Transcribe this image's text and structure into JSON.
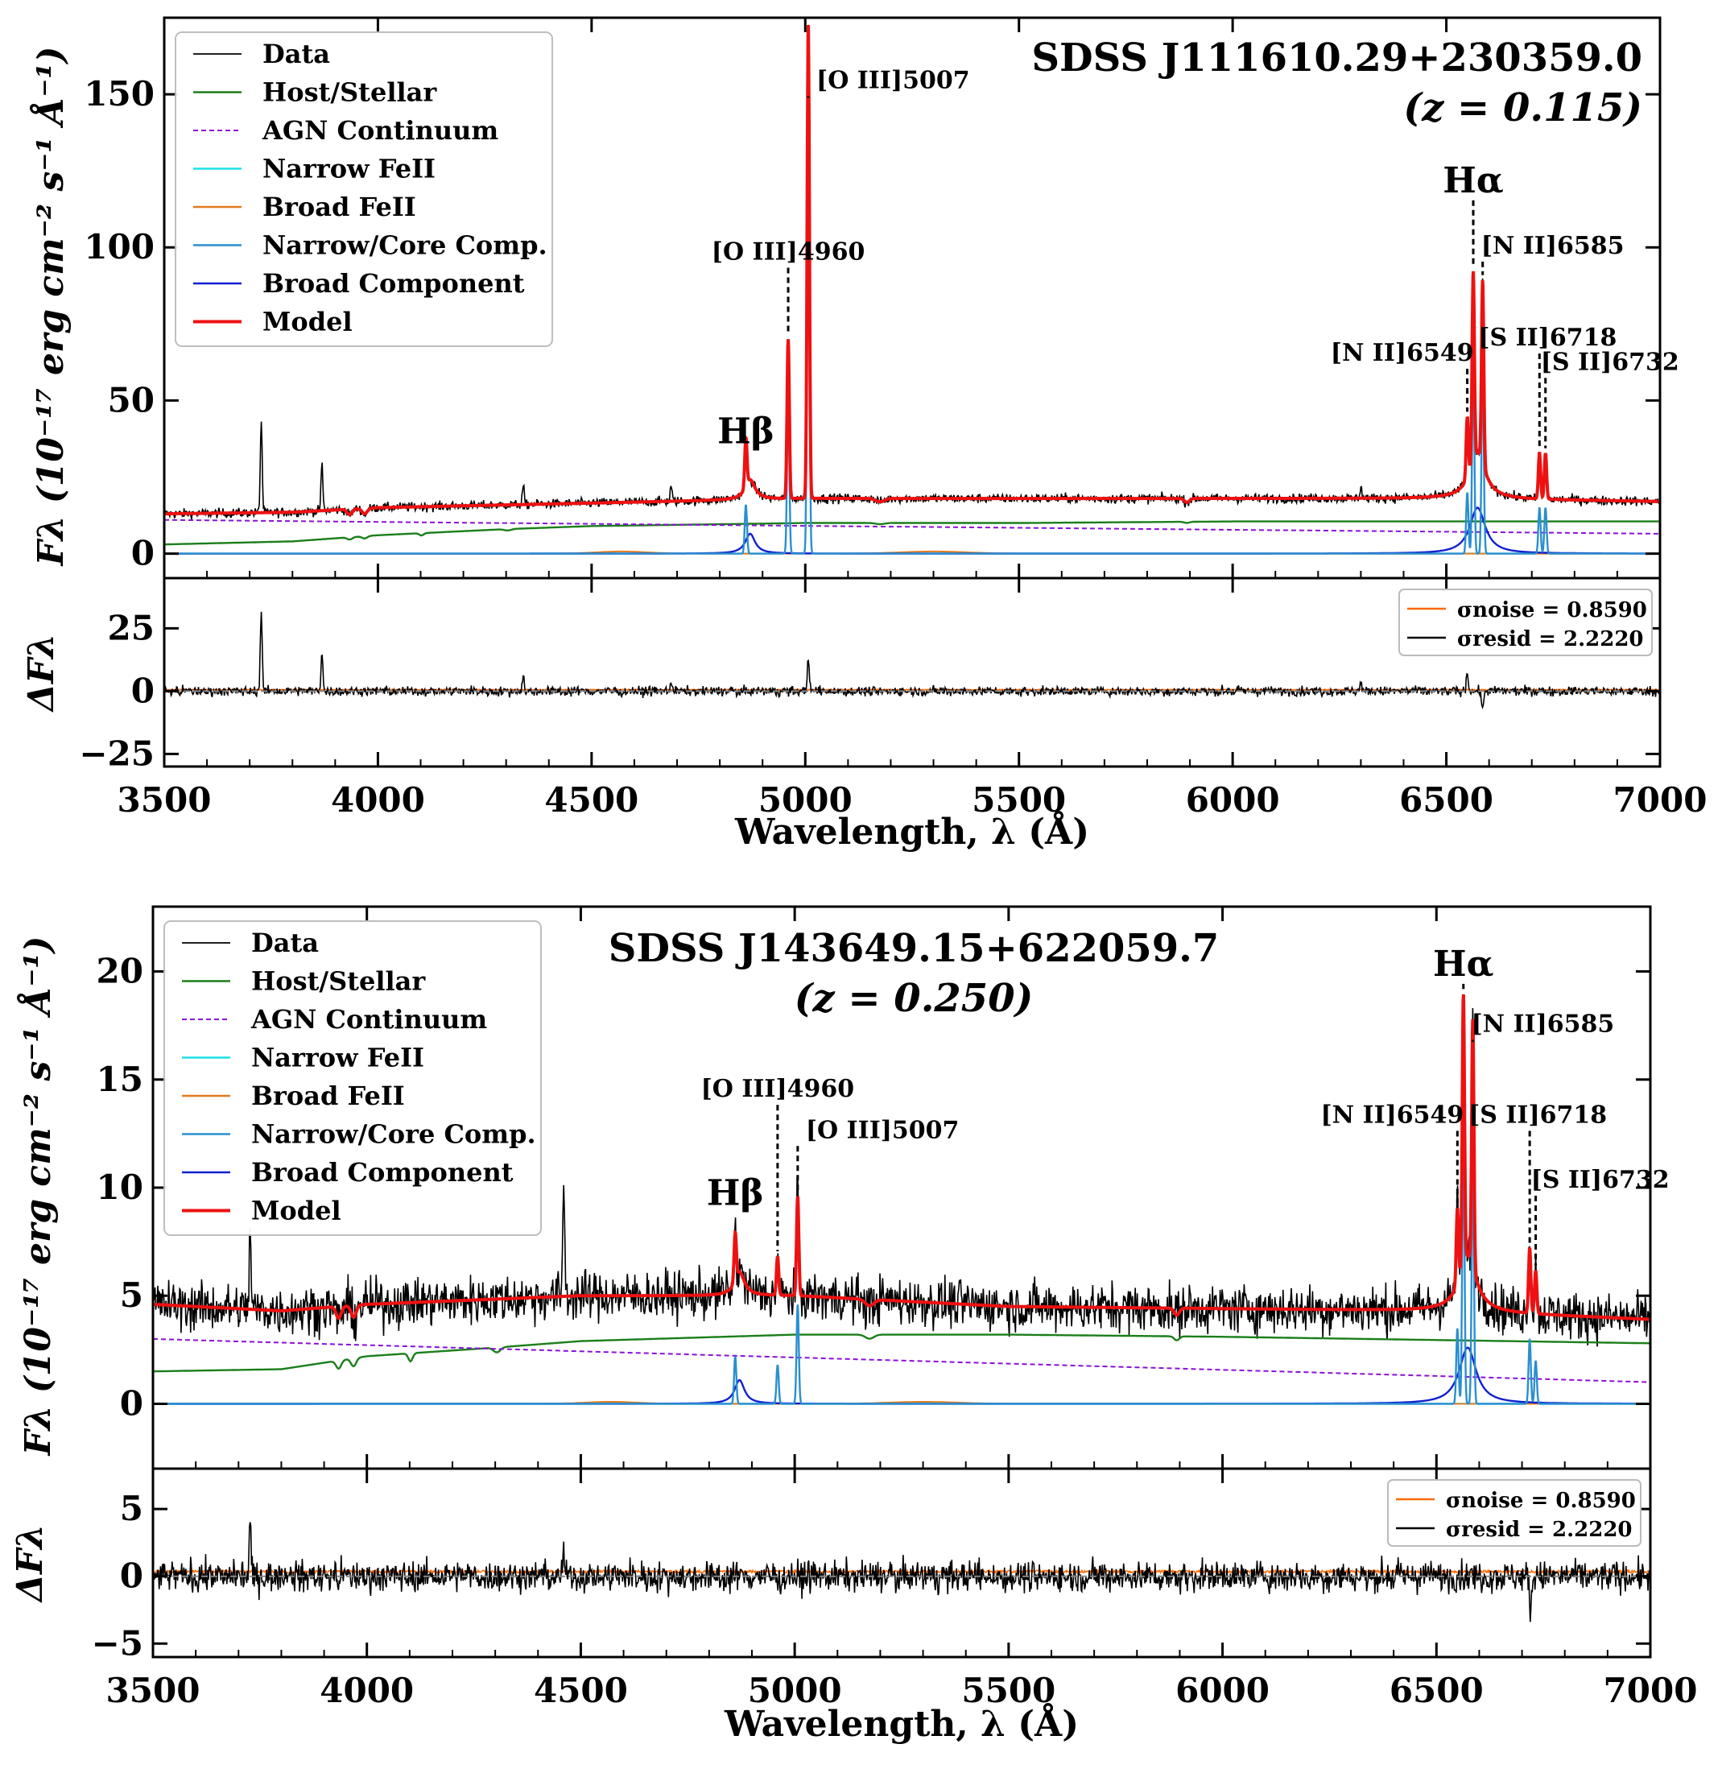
{
  "colors": {
    "data": "#000000",
    "host": "#1a7f1a",
    "agn": "#8b10d8",
    "narrow_feii": "#1fe0e8",
    "broad_feii": "#e07c1e",
    "narrow_core": "#2a8fd0",
    "broad_comp": "#1020d0",
    "model": "#ee1111",
    "sigma_noise": "#ff6a00",
    "sigma_resid": "#000000"
  },
  "chart_data": [
    {
      "type": "line",
      "title": "SDSS J111610.29+230359.0",
      "subtitle": "(z = 0.115)",
      "ylabel": "Fλ (10⁻¹⁷ erg cm⁻² s⁻¹ Å⁻¹)",
      "resid_ylabel": "ΔFλ",
      "xlabel": "Wavelength, λ (Å)",
      "xlim": [
        3500,
        7000
      ],
      "ylim": [
        -8,
        175
      ],
      "resid_ylim": [
        -30,
        45
      ],
      "xticks": [
        3500,
        4000,
        4500,
        5000,
        5500,
        6000,
        6500,
        7000
      ],
      "yticks": [
        0,
        50,
        100,
        150
      ],
      "resid_yticks": [
        -25,
        0,
        25
      ],
      "legend": [
        "Data",
        "Host/Stellar",
        "AGN Continuum",
        "Narrow FeII",
        "Broad FeII",
        "Narrow/Core Comp.",
        "Broad Component",
        "Model"
      ],
      "legend_position": "top-left",
      "sigma_noise": "σnoise = 0.8590",
      "sigma_resid": "σresid = 2.2220",
      "continuum": {
        "agn": [
          [
            3500,
            11
          ],
          [
            7000,
            6.5
          ]
        ],
        "host": [
          [
            3500,
            3
          ],
          [
            3800,
            4
          ],
          [
            4000,
            6
          ],
          [
            4300,
            8
          ],
          [
            4500,
            9
          ],
          [
            5000,
            10
          ],
          [
            5500,
            10
          ],
          [
            6000,
            10.5
          ],
          [
            7000,
            10.5
          ]
        ],
        "model": [
          [
            3500,
            13
          ],
          [
            3800,
            13.5
          ],
          [
            4000,
            15
          ],
          [
            4500,
            16.5
          ],
          [
            5000,
            18
          ],
          [
            5500,
            18
          ],
          [
            6000,
            18
          ],
          [
            6500,
            18
          ],
          [
            7000,
            17
          ]
        ]
      },
      "lines": [
        {
          "name": "Hβ",
          "wave": 4861,
          "narrow": 16,
          "broad": 6.5,
          "broad_sigma": 14
        },
        {
          "name": "[O III]4960",
          "wave": 4960,
          "narrow": 52,
          "broad": 0,
          "broad_sigma": 0
        },
        {
          "name": "[O III]5007",
          "wave": 5007,
          "narrow": 155,
          "broad": 0,
          "broad_sigma": 0
        },
        {
          "name": "[N II]6549",
          "wave": 6549,
          "narrow": 20,
          "broad": 0,
          "broad_sigma": 0
        },
        {
          "name": "Hα",
          "wave": 6563,
          "narrow": 62,
          "broad": 15,
          "broad_sigma": 22
        },
        {
          "name": "[N II]6585",
          "wave": 6585,
          "narrow": 60,
          "broad": 0,
          "broad_sigma": 0
        },
        {
          "name": "[S II]6718",
          "wave": 6718,
          "narrow": 15,
          "broad": 0,
          "broad_sigma": 0
        },
        {
          "name": "[S II]6732",
          "wave": 6732,
          "narrow": 15,
          "broad": 0,
          "broad_sigma": 0
        }
      ],
      "extra_data_spikes": [
        [
          3727,
          30
        ],
        [
          3869,
          15
        ],
        [
          4340,
          6
        ],
        [
          4686,
          5
        ],
        [
          6300,
          4
        ]
      ],
      "resid_spikes": [
        [
          3727,
          32
        ],
        [
          3869,
          16
        ],
        [
          4340,
          6
        ],
        [
          4686,
          4
        ],
        [
          5007,
          14
        ],
        [
          6300,
          4
        ],
        [
          6549,
          8
        ],
        [
          6585,
          -8
        ]
      ],
      "noise_amp": 1.5,
      "resid_noise_amp": 1.8,
      "labels": [
        {
          "text": "Hβ",
          "wave": 4861,
          "y": 36
        },
        {
          "text": "[O III]4960",
          "wave": 4960,
          "y": 96
        },
        {
          "text": "[O III]5007",
          "wave": 5007,
          "y": 152
        },
        {
          "text": "[N II]6549",
          "wave": 6549,
          "y": 63
        },
        {
          "text": "Hα",
          "wave": 6563,
          "y": 118
        },
        {
          "text": "[N II]6585",
          "wave": 6585,
          "y": 98
        },
        {
          "text": "[S II]6718",
          "wave": 6718,
          "y": 68
        },
        {
          "text": "[S II]6732",
          "wave": 6732,
          "y": 60
        }
      ]
    },
    {
      "type": "line",
      "title": "SDSS J143649.15+622059.7",
      "subtitle": "(z = 0.250)",
      "ylabel": "Fλ (10⁻¹⁷ erg cm⁻² s⁻¹ Å⁻¹)",
      "resid_ylabel": "ΔFλ",
      "xlabel": "Wavelength, λ (Å)",
      "xlim": [
        3500,
        7000
      ],
      "ylim": [
        -3,
        23
      ],
      "resid_ylim": [
        -6,
        8
      ],
      "xticks": [
        3500,
        4000,
        4500,
        5000,
        5500,
        6000,
        6500,
        7000
      ],
      "yticks": [
        0,
        5,
        10,
        15,
        20
      ],
      "resid_yticks": [
        -5,
        0,
        5
      ],
      "legend": [
        "Data",
        "Host/Stellar",
        "AGN Continuum",
        "Narrow FeII",
        "Broad FeII",
        "Narrow/Core Comp.",
        "Broad Component",
        "Model"
      ],
      "legend_position": "top-left",
      "sigma_noise": "σnoise = 0.8590",
      "sigma_resid": "σresid = 2.2220",
      "continuum": {
        "agn": [
          [
            3500,
            3
          ],
          [
            7000,
            1
          ]
        ],
        "host": [
          [
            3500,
            1.5
          ],
          [
            3800,
            1.6
          ],
          [
            4000,
            2.2
          ],
          [
            4300,
            2.6
          ],
          [
            4500,
            2.9
          ],
          [
            5000,
            3.2
          ],
          [
            5500,
            3.2
          ],
          [
            6000,
            3.1
          ],
          [
            7000,
            2.8
          ]
        ],
        "model": [
          [
            3500,
            4.6
          ],
          [
            3800,
            4.3
          ],
          [
            4000,
            4.6
          ],
          [
            4500,
            5.0
          ],
          [
            4800,
            5.0
          ],
          [
            5000,
            5.0
          ],
          [
            5500,
            4.5
          ],
          [
            6000,
            4.4
          ],
          [
            6500,
            4.3
          ],
          [
            7000,
            3.9
          ]
        ]
      },
      "lines": [
        {
          "name": "Hβ",
          "wave": 4861,
          "narrow": 2.2,
          "broad": 1.1,
          "broad_sigma": 14
        },
        {
          "name": "[O III]4960",
          "wave": 4960,
          "narrow": 1.8,
          "broad": 0,
          "broad_sigma": 0
        },
        {
          "name": "[O III]5007",
          "wave": 5007,
          "narrow": 4.6,
          "broad": 0,
          "broad_sigma": 0
        },
        {
          "name": "[N II]6549",
          "wave": 6549,
          "narrow": 3.5,
          "broad": 0,
          "broad_sigma": 0
        },
        {
          "name": "Hα",
          "wave": 6563,
          "narrow": 12.5,
          "broad": 2.6,
          "broad_sigma": 24
        },
        {
          "name": "[N II]6585",
          "wave": 6585,
          "narrow": 11.5,
          "broad": 0,
          "broad_sigma": 0
        },
        {
          "name": "[S II]6718",
          "wave": 6718,
          "narrow": 3.0,
          "broad": 0,
          "broad_sigma": 0
        },
        {
          "name": "[S II]6732",
          "wave": 6732,
          "narrow": 2.0,
          "broad": 0,
          "broad_sigma": 0
        }
      ],
      "extra_data_spikes": [
        [
          3727,
          3.5
        ],
        [
          4460,
          5.5
        ]
      ],
      "resid_spikes": [
        [
          3727,
          4
        ],
        [
          4460,
          5
        ],
        [
          4460,
          -3
        ],
        [
          6720,
          -3
        ]
      ],
      "noise_amp": 1.1,
      "resid_noise_amp": 1.1,
      "labels": [
        {
          "text": "Hβ",
          "wave": 4861,
          "y": 9.2
        },
        {
          "text": "[O III]4960",
          "wave": 4960,
          "y": 14.2
        },
        {
          "text": "[O III]5007",
          "wave": 5007,
          "y": 12.3
        },
        {
          "text": "[N II]6549",
          "wave": 6549,
          "y": 13.0
        },
        {
          "text": "Hα",
          "wave": 6563,
          "y": 19.8
        },
        {
          "text": "[N II]6585",
          "wave": 6585,
          "y": 17.2
        },
        {
          "text": "[S II]6718",
          "wave": 6718,
          "y": 13.0
        },
        {
          "text": "[S II]6732",
          "wave": 6732,
          "y": 10.0
        }
      ]
    }
  ]
}
